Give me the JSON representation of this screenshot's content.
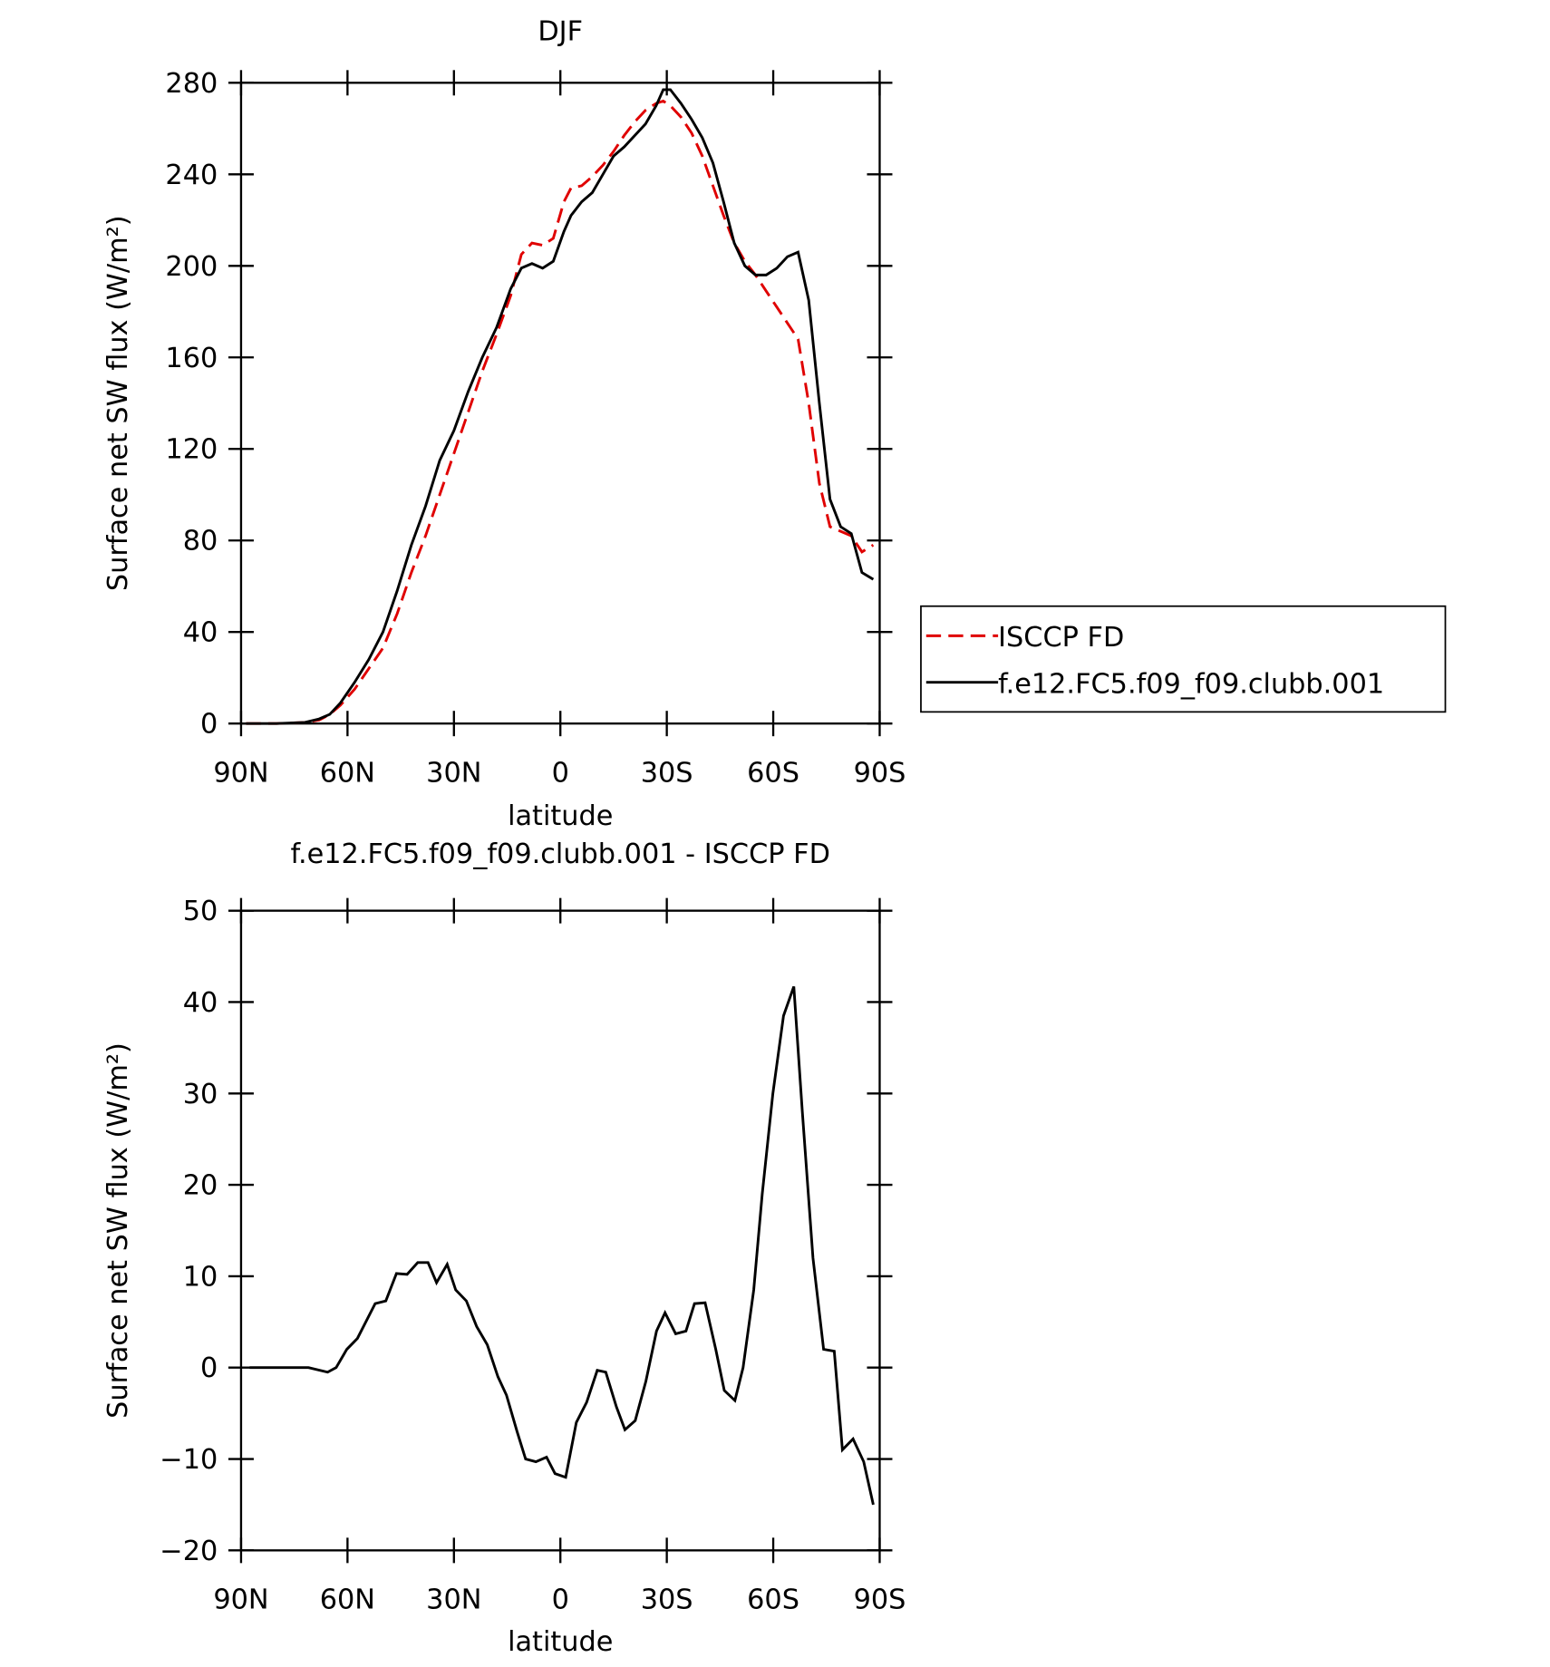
{
  "chart_data": [
    {
      "type": "line",
      "title": "DJF",
      "xlabel": "latitude",
      "ylabel": "Surface net SW flux (W/m²)",
      "x": [
        88.6,
        80,
        72,
        68,
        65,
        62,
        58,
        54,
        50,
        46,
        42,
        38,
        34,
        30,
        26,
        22,
        18,
        14,
        11,
        8,
        5,
        2,
        -1,
        -3,
        -6,
        -9,
        -12,
        -15,
        -18,
        -21,
        -24,
        -27,
        -29,
        -31,
        -34,
        -37,
        -40,
        -43,
        -46,
        -49,
        -52,
        -55,
        -58,
        -61,
        -64,
        -67,
        -70,
        -73,
        -76,
        -79,
        -82,
        -85,
        -88.2
      ],
      "series": [
        {
          "name": "ISCCP FD",
          "color": "#e00000",
          "dash": true,
          "values": [
            0,
            0,
            0.5,
            1.5,
            4,
            8,
            15,
            24,
            33,
            48,
            66,
            82,
            100,
            118,
            136,
            154,
            170,
            187,
            205,
            210,
            209,
            212,
            228,
            234,
            235,
            239,
            244,
            250,
            257,
            263,
            268,
            271,
            272,
            270,
            265,
            258,
            248,
            235,
            222,
            210,
            202,
            196,
            189,
            182,
            175,
            168,
            140,
            105,
            86,
            84,
            82,
            75,
            78
          ]
        },
        {
          "name": "f.e12.FC5.f09_f09.clubb.001",
          "color": "#000000",
          "dash": false,
          "values": [
            0,
            0,
            0.5,
            2,
            4,
            9,
            18,
            28,
            40,
            58,
            78,
            95,
            115,
            128,
            145,
            160,
            173,
            190,
            199,
            201,
            199,
            202,
            215,
            222,
            228,
            232,
            240,
            248,
            252,
            257,
            262,
            270,
            277,
            277,
            271,
            264,
            256,
            245,
            228,
            210,
            200,
            196,
            196,
            199,
            204,
            206,
            185,
            140,
            98,
            86,
            83,
            66,
            63
          ]
        }
      ],
      "xlim": [
        90,
        -90
      ],
      "xticks": [
        {
          "value": 90,
          "label": "90N"
        },
        {
          "value": 60,
          "label": "60N"
        },
        {
          "value": 30,
          "label": "30N"
        },
        0,
        {
          "value": -30,
          "label": "30S"
        },
        {
          "value": -60,
          "label": "60S"
        },
        {
          "value": -90,
          "label": "90S"
        }
      ],
      "ylim": [
        0,
        280
      ],
      "yticks": [
        0,
        40,
        80,
        120,
        160,
        200,
        240,
        280
      ],
      "legend": "right"
    },
    {
      "type": "line",
      "title": "f.e12.FC5.f09_f09.clubb.001 - ISCCP FD",
      "xlabel": "latitude",
      "ylabel": "Surface net SW flux (W/m²)",
      "x": [
        87.6,
        71,
        65.6,
        63.2,
        60.2,
        57.2,
        52.2,
        49.2,
        46.2,
        43.2,
        40.2,
        37.3,
        34.9,
        31.9,
        29.5,
        26.5,
        23.6,
        20.6,
        17.6,
        15.2,
        12.2,
        9.8,
        6.9,
        3.9,
        1.5,
        -1.5,
        -4.5,
        -7.4,
        -10.4,
        -12.8,
        -15.8,
        -18.2,
        -21.1,
        -24.1,
        -27.1,
        -29.5,
        -32.5,
        -35.4,
        -37.8,
        -40.8,
        -43.8,
        -46.2,
        -49.2,
        -51.5,
        -54.5,
        -56.9,
        -59.9,
        -62.9,
        -65.8,
        -68.2,
        -71.2,
        -74.2,
        -77.2,
        -79.5,
        -82.5,
        -85.5,
        -88.2
      ],
      "color": "#000000",
      "values": [
        0,
        0,
        -0.5,
        0,
        2,
        3.2,
        7,
        7.3,
        10.3,
        10.2,
        11.5,
        11.5,
        9.3,
        11.3,
        8.5,
        7.3,
        4.5,
        2.5,
        -1,
        -3,
        -7,
        -10,
        -10.3,
        -9.8,
        -11.6,
        -12,
        -6,
        -3.8,
        -0.3,
        -0.5,
        -4.3,
        -6.8,
        -5.8,
        -1.5,
        4,
        6,
        3.7,
        4,
        7,
        7.1,
        2,
        -2.5,
        -3.6,
        0,
        8.5,
        19,
        30,
        38.5,
        41.7,
        28,
        12,
        2,
        1.8,
        -9,
        -7.8,
        -10.3,
        -15
      ],
      "xlim": [
        90,
        -90
      ],
      "xticks": [
        {
          "value": 90,
          "label": "90N"
        },
        {
          "value": 60,
          "label": "60N"
        },
        {
          "value": 30,
          "label": "30N"
        },
        0,
        {
          "value": -30,
          "label": "30S"
        },
        {
          "value": -60,
          "label": "60S"
        },
        {
          "value": -90,
          "label": "90S"
        }
      ],
      "ylim": [
        -20,
        50
      ],
      "yticks": [
        {
          "value": -20,
          "label": "−20"
        },
        {
          "value": -10,
          "label": "−10"
        },
        0,
        10,
        20,
        30,
        40,
        50
      ]
    }
  ]
}
